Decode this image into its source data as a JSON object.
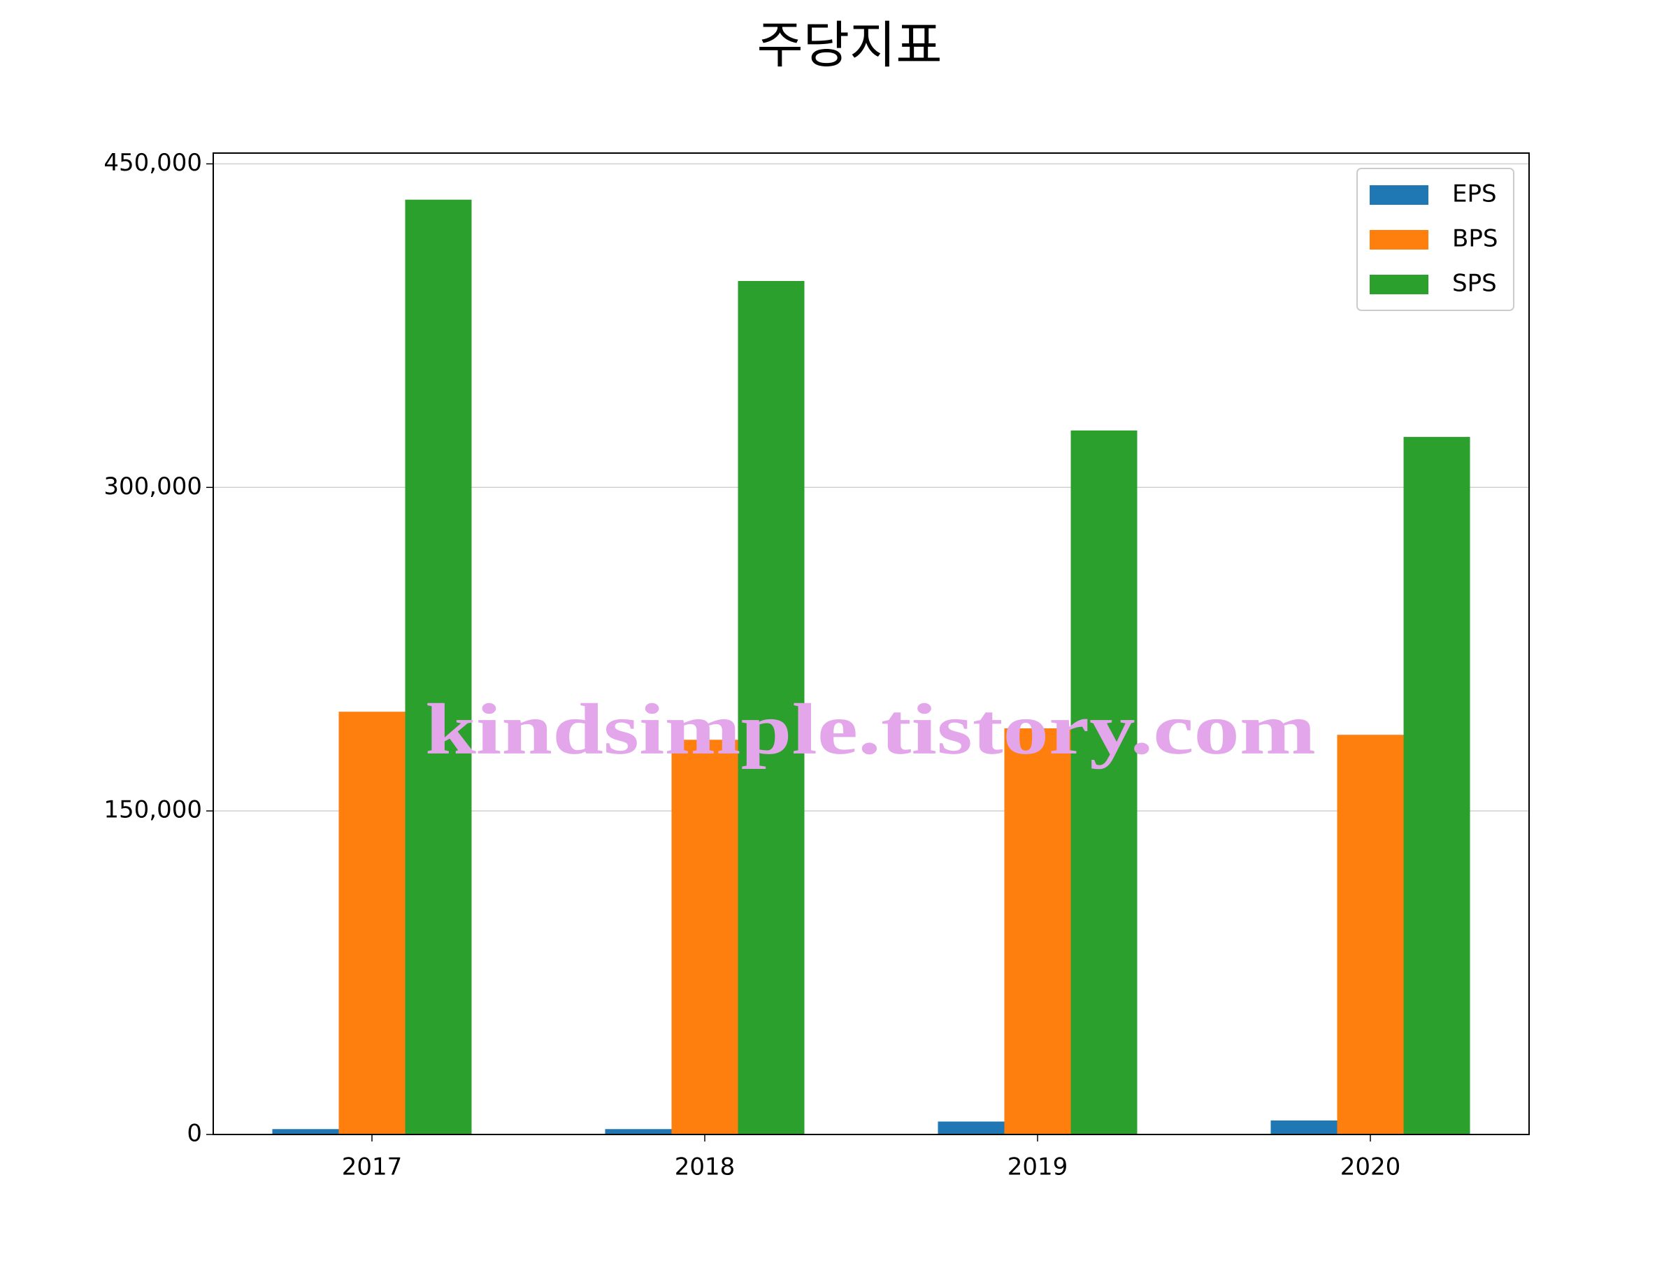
{
  "chart_data": {
    "type": "bar",
    "title": "주당지표",
    "categories": [
      "2017",
      "2018",
      "2019",
      "2020"
    ],
    "series": [
      {
        "name": "EPS",
        "color": "#1f77b4",
        "values": [
          2500,
          2500,
          6000,
          6500
        ]
      },
      {
        "name": "BPS",
        "color": "#ff7f0e",
        "values": [
          196000,
          183000,
          188300,
          185300
        ]
      },
      {
        "name": "SPS",
        "color": "#2ca02c",
        "values": [
          433400,
          395700,
          326400,
          323400
        ]
      }
    ],
    "ylim": [
      0,
      455000
    ],
    "yticks": [
      0,
      {
        "value": 150000,
        "label": "150,000"
      },
      {
        "value": 300000,
        "label": "300,000"
      },
      {
        "value": 450000,
        "label": "450,000"
      }
    ],
    "grid": true,
    "legend": "upper right",
    "watermark": "kindsimple.tistory.com"
  }
}
